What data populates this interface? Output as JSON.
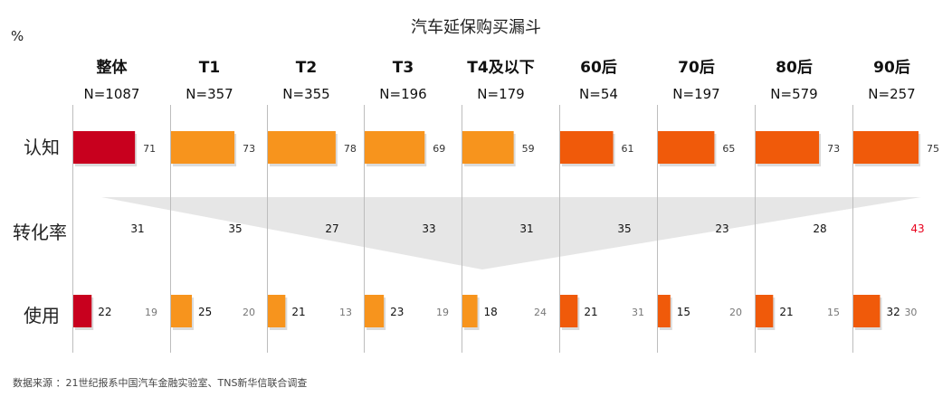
{
  "chart_data": {
    "type": "bar",
    "title": "汽车延保购买漏斗",
    "unit": "%",
    "source": "数据来源 ：21世纪报系中国汽车金融实验室、TNS新华信联合调查",
    "row_labels": {
      "awareness": "认知",
      "conversion": "转化率",
      "usage": "使用"
    },
    "groups": [
      {
        "name": "整体",
        "n": "N=1087",
        "color": "#c8001e",
        "awareness": 71,
        "conversion": 31,
        "usage": 22,
        "usage_ref": 19
      },
      {
        "name": "T1",
        "n": "N=357",
        "color": "#f7941d",
        "awareness": 73,
        "conversion": 35,
        "usage": 25,
        "usage_ref": 20
      },
      {
        "name": "T2",
        "n": "N=355",
        "color": "#f7941d",
        "awareness": 78,
        "conversion": 27,
        "usage": 21,
        "usage_ref": 13
      },
      {
        "name": "T3",
        "n": "N=196",
        "color": "#f7941d",
        "awareness": 69,
        "conversion": 33,
        "usage": 23,
        "usage_ref": 19
      },
      {
        "name": "T4及以下",
        "n": "N=179",
        "color": "#f7941d",
        "awareness": 59,
        "conversion": 31,
        "usage": 18,
        "usage_ref": 24
      },
      {
        "name": "60后",
        "n": "N=54",
        "color": "#f05a0a",
        "awareness": 61,
        "conversion": 35,
        "usage": 21,
        "usage_ref": 31
      },
      {
        "name": "70后",
        "n": "N=197",
        "color": "#f05a0a",
        "awareness": 65,
        "conversion": 23,
        "usage": 15,
        "usage_ref": 20
      },
      {
        "name": "80后",
        "n": "N=579",
        "color": "#f05a0a",
        "awareness": 73,
        "conversion": 28,
        "usage": 21,
        "usage_ref": 15
      },
      {
        "name": "90后",
        "n": "N=257",
        "color": "#f05a0a",
        "awareness": 75,
        "conversion": 43,
        "usage": 32,
        "usage_ref": 30,
        "conversion_color": "#e8001c"
      }
    ],
    "funnel_color": "#e6e6e6"
  }
}
